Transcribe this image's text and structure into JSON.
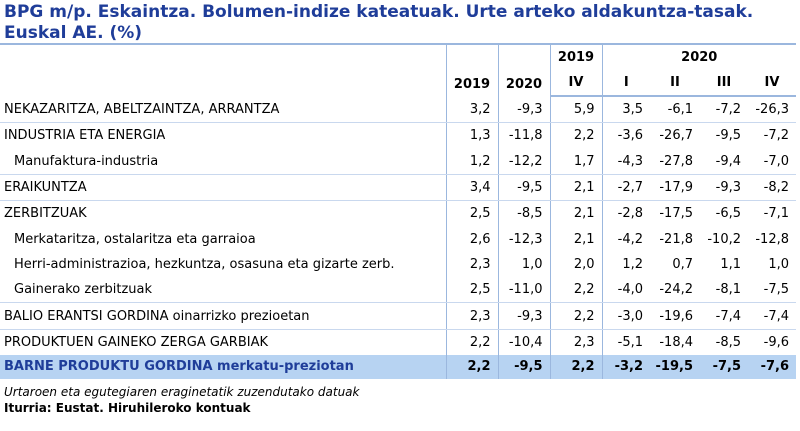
{
  "title": "BPG m/p. Eskaintza. Bolumen-indize kateatuak. Urte arteko aldakuntza-tasak. Euskal AE. (%)",
  "header": {
    "year_2019": "2019",
    "year_2020": "2020",
    "group_2019": "2019",
    "group_2020": "2020",
    "q_iv_2019": "IV",
    "q_i": "I",
    "q_ii": "II",
    "q_iii": "III",
    "q_iv": "IV"
  },
  "rows": [
    {
      "label": "NEKAZARITZA, ABELTZAINTZA, ARRANTZA",
      "v": [
        "3,2",
        "-9,3",
        "5,9",
        "3,5",
        "-6,1",
        "-7,2",
        "-26,3"
      ]
    },
    {
      "label": "INDUSTRIA ETA ENERGIA",
      "v": [
        "1,3",
        "-11,8",
        "2,2",
        "-3,6",
        "-26,7",
        "-9,5",
        "-7,2"
      ]
    },
    {
      "label": "Manufaktura-industria",
      "v": [
        "1,2",
        "-12,2",
        "1,7",
        "-4,3",
        "-27,8",
        "-9,4",
        "-7,0"
      ]
    },
    {
      "label": "ERAIKUNTZA",
      "v": [
        "3,4",
        "-9,5",
        "2,1",
        "-2,7",
        "-17,9",
        "-9,3",
        "-8,2"
      ]
    },
    {
      "label": "ZERBITZUAK",
      "v": [
        "2,5",
        "-8,5",
        "2,1",
        "-2,8",
        "-17,5",
        "-6,5",
        "-7,1"
      ]
    },
    {
      "label": "Merkataritza, ostalaritza eta garraioa",
      "v": [
        "2,6",
        "-12,3",
        "2,1",
        "-4,2",
        "-21,8",
        "-10,2",
        "-12,8"
      ]
    },
    {
      "label": "Herri-administrazioa, hezkuntza, osasuna eta gizarte zerb.",
      "v": [
        "2,3",
        "1,0",
        "2,0",
        "1,2",
        "0,7",
        "1,1",
        "1,0"
      ]
    },
    {
      "label": "Gainerako zerbitzuak",
      "v": [
        "2,5",
        "-11,0",
        "2,2",
        "-4,0",
        "-24,2",
        "-8,1",
        "-7,5"
      ]
    },
    {
      "label": "BALIO ERANTSI GORDINA oinarrizko prezioetan",
      "v": [
        "2,3",
        "-9,3",
        "2,2",
        "-3,0",
        "-19,6",
        "-7,4",
        "-7,4"
      ]
    },
    {
      "label": "PRODUKTUEN GAINEKO ZERGA GARBIAK",
      "v": [
        "2,2",
        "-10,4",
        "2,3",
        "-5,1",
        "-18,4",
        "-8,5",
        "-9,6"
      ]
    }
  ],
  "total": {
    "label": "BARNE PRODUKTU GORDINA merkatu-preziotan",
    "v": [
      "2,2",
      "-9,5",
      "2,2",
      "-3,2",
      "-19,5",
      "-7,5",
      "-7,6"
    ]
  },
  "note": "Urtaroen eta egutegiaren eraginetatik zuzendutako datuak",
  "source": "Iturria: Eustat. Hiruhileroko kontuak",
  "colors": {
    "title": "#1f3d99",
    "total_bg": "#b7d3f2",
    "rule": "#9bb7de"
  }
}
